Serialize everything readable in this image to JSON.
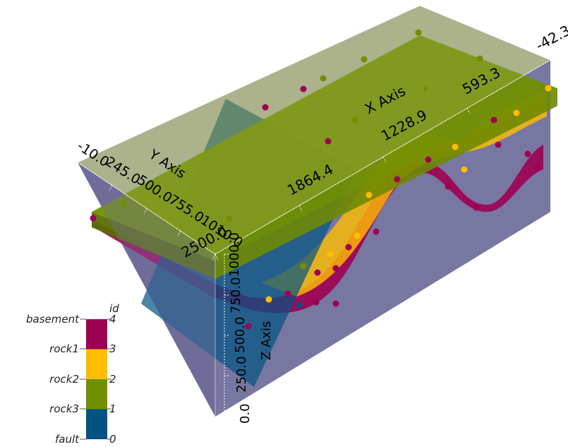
{
  "x_axis": {
    "title": "X Axis",
    "ticks": [
      "-42.3",
      "593.3",
      "1228.9",
      "1864.4",
      "2500.0"
    ]
  },
  "y_axis": {
    "title": "Y Axis",
    "ticks": [
      "-10.0",
      "245.0",
      "500.0",
      "755.0",
      "1010.0"
    ]
  },
  "z_axis": {
    "title": "Z Axis",
    "ticks": [
      "0.0",
      "250.0",
      "500.0",
      "750.0",
      "1000.0"
    ]
  },
  "legend": {
    "title": "id",
    "entries": [
      {
        "name": "basement",
        "value": "4",
        "color": "#9e0052"
      },
      {
        "name": "rock1",
        "value": "3",
        "color": "#ffbe00"
      },
      {
        "name": "rock2",
        "value": "2",
        "color": "#728f02"
      },
      {
        "name": "rock3",
        "value": "1",
        "color": "#728f02"
      },
      {
        "name": "fault",
        "value": "0",
        "color": "#015482"
      }
    ],
    "bands": [
      {
        "value": 4,
        "color": "#9e0052"
      },
      {
        "value": 3,
        "color": "#ffbe00"
      },
      {
        "value": 2,
        "color": "#728f02"
      },
      {
        "value": 1,
        "color": "#015482"
      }
    ]
  },
  "colors": {
    "box_side": "#6a6a98",
    "box_top": "#93a235",
    "rock_green": "#728f02",
    "rock_yellow": "#ffbe00",
    "basement": "#9e0052",
    "fault": "#015482"
  }
}
